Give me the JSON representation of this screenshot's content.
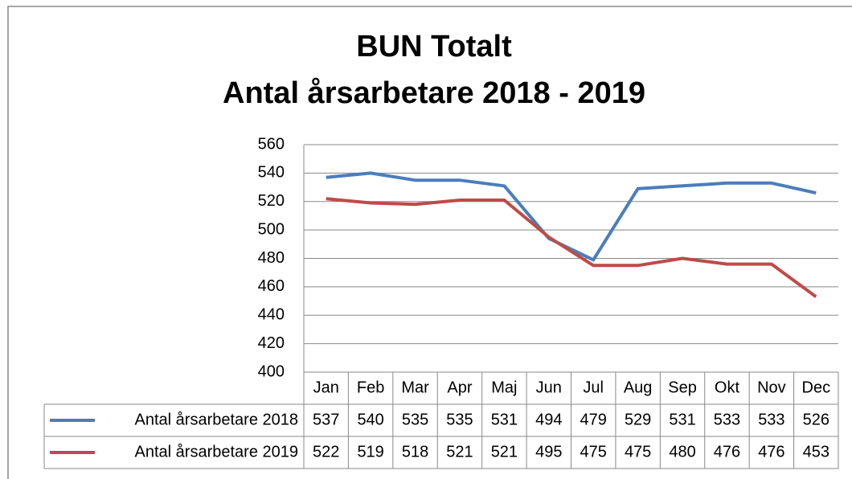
{
  "chart_data": {
    "type": "line",
    "title": [
      "BUN Totalt",
      "Antal årsarbetare 2018 - 2019"
    ],
    "categories": [
      "Jan",
      "Feb",
      "Mar",
      "Apr",
      "Maj",
      "Jun",
      "Jul",
      "Aug",
      "Sep",
      "Okt",
      "Nov",
      "Dec"
    ],
    "series": [
      {
        "name": "Antal årsarbetare 2018",
        "color": "#4a7ebb",
        "values": [
          537,
          540,
          535,
          535,
          531,
          494,
          479,
          529,
          531,
          533,
          533,
          526
        ]
      },
      {
        "name": "Antal årsarbetare 2019",
        "color": "#be4b48",
        "values": [
          522,
          519,
          518,
          521,
          521,
          495,
          475,
          475,
          480,
          476,
          476,
          453
        ]
      }
    ],
    "ylim": [
      400,
      560
    ],
    "yticks": [
      400,
      420,
      440,
      460,
      480,
      500,
      520,
      540,
      560
    ],
    "grid": true
  }
}
